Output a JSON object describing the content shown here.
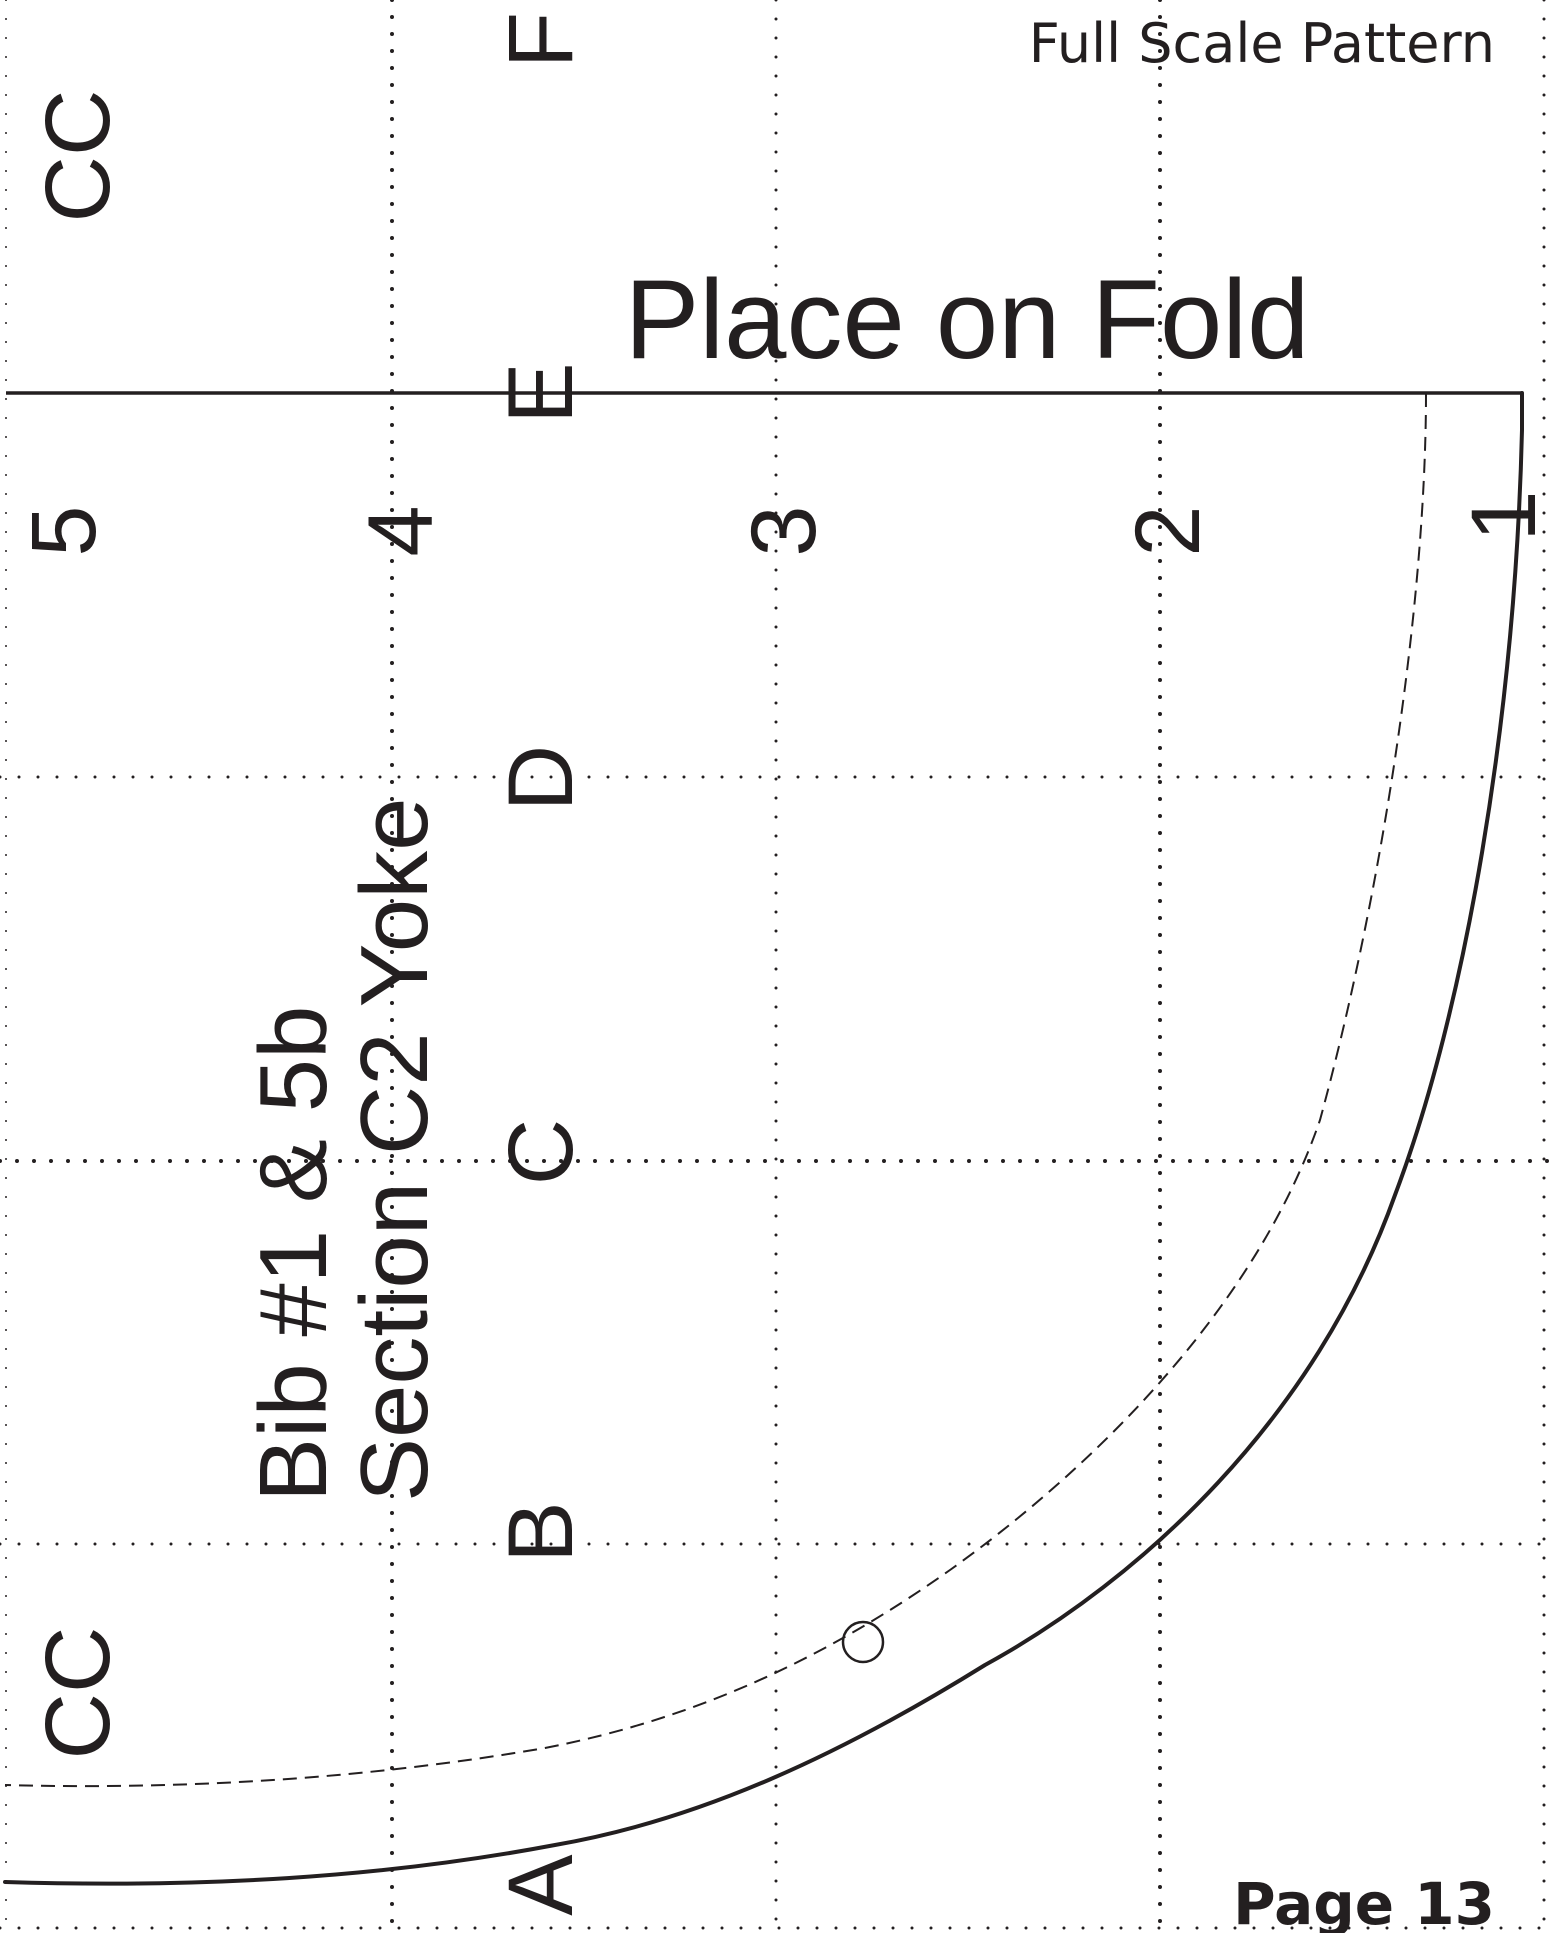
{
  "header": {
    "title": "Full Scale Pattern"
  },
  "fold": {
    "label": "Place on Fold"
  },
  "piece": {
    "name_line1": "Bib #1 & 5b",
    "name_line2": "Section C2 Yoke"
  },
  "grid": {
    "row_letters": [
      "A",
      "B",
      "C",
      "D",
      "E",
      "F"
    ],
    "column_numbers": [
      "1",
      "2",
      "3",
      "4",
      "5"
    ],
    "corner_marks": [
      "CC",
      "CC"
    ]
  },
  "footer": {
    "page_label": "Page 13"
  },
  "colors": {
    "ink": "#231f20",
    "paper": "#ffffff"
  }
}
